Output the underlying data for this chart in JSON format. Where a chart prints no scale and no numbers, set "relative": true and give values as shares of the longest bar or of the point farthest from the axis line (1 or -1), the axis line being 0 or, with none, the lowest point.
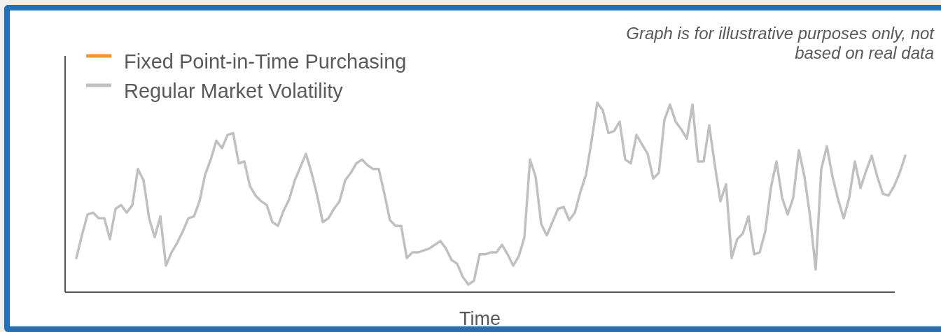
{
  "chart_data": {
    "type": "line",
    "relative": true,
    "xlabel": "Time",
    "legend": "top left",
    "annotations": [
      "Graph is for illustrative purposes only, not based on real data"
    ],
    "categories": [
      null,
      null,
      null,
      null,
      null,
      null,
      null,
      null,
      null,
      null,
      null,
      null,
      null,
      null,
      null,
      null,
      null,
      null,
      null,
      null,
      null,
      null,
      null,
      null,
      null,
      null,
      null,
      null,
      null,
      null,
      null,
      null,
      null,
      null,
      null,
      null,
      null,
      null,
      null,
      null,
      null,
      null,
      null,
      null,
      null,
      null,
      null,
      null,
      null,
      null,
      null,
      null,
      null,
      null,
      null,
      null,
      null,
      null,
      null,
      null,
      null,
      null,
      null,
      null,
      null,
      null,
      null,
      null,
      null,
      null,
      null,
      null,
      null,
      null,
      null,
      null,
      null,
      null,
      null,
      null,
      null,
      null,
      null,
      null,
      null,
      null,
      null,
      null,
      null,
      null,
      null,
      null,
      null,
      null,
      null,
      null,
      null,
      null,
      null,
      null,
      null,
      null,
      null,
      null,
      null,
      null,
      null,
      null,
      null,
      null,
      null,
      null,
      null,
      null,
      null,
      null,
      null,
      null,
      null,
      null,
      null,
      null,
      null,
      null,
      null,
      null,
      null,
      null,
      null,
      null,
      null,
      null,
      null,
      null,
      null,
      null,
      null,
      null,
      null,
      null,
      null,
      null,
      null,
      null,
      null,
      null,
      null,
      null,
      null
    ],
    "series": [
      {
        "name": "Fixed Point-in-Time Purchasing",
        "color": "#f7962b",
        "values": [
          null,
          null,
          null,
          null,
          null,
          null,
          null,
          null,
          null,
          null,
          null,
          null,
          null,
          null,
          null,
          null,
          null,
          null,
          null,
          null,
          null,
          null,
          null,
          null,
          null,
          null,
          null,
          null,
          null,
          null,
          null,
          null,
          null,
          null,
          null,
          null,
          null,
          null,
          null,
          null,
          null,
          null,
          null,
          null,
          null,
          null,
          null,
          null,
          null,
          null,
          null,
          null,
          null,
          null,
          null,
          null,
          null,
          null,
          null,
          null,
          null,
          null,
          null,
          null,
          null,
          null,
          null,
          null,
          null,
          null,
          null,
          null,
          null,
          null,
          null,
          null,
          null,
          null,
          null,
          null,
          null,
          null,
          null,
          null,
          null,
          null,
          null,
          null,
          null,
          null,
          null,
          null,
          null,
          null,
          null,
          null,
          null,
          null,
          null,
          null,
          null,
          null,
          null,
          null,
          null,
          null,
          null,
          null,
          null,
          null,
          null,
          null,
          null,
          null,
          null,
          null,
          null,
          null,
          null,
          null,
          null,
          null,
          null,
          null,
          null,
          null,
          null,
          null,
          null,
          null,
          null,
          null,
          null,
          null,
          null,
          null,
          null,
          null,
          null,
          null,
          null,
          null,
          null,
          null,
          null,
          null,
          null,
          null,
          null
        ]
      },
      {
        "name": "Regular Market Volatility",
        "color": "#c0c0c0",
        "values": [
          0.18,
          0.3,
          0.41,
          0.42,
          0.39,
          0.39,
          0.28,
          0.44,
          0.46,
          0.42,
          0.46,
          0.65,
          0.59,
          0.39,
          0.29,
          0.4,
          0.14,
          0.21,
          0.26,
          0.32,
          0.39,
          0.4,
          0.48,
          0.62,
          0.7,
          0.8,
          0.76,
          0.83,
          0.84,
          0.68,
          0.69,
          0.56,
          0.51,
          0.48,
          0.46,
          0.37,
          0.35,
          0.43,
          0.49,
          0.59,
          0.66,
          0.73,
          0.63,
          0.51,
          0.37,
          0.39,
          0.44,
          0.48,
          0.59,
          0.63,
          0.68,
          0.7,
          0.67,
          0.65,
          0.65,
          0.52,
          0.38,
          0.35,
          0.35,
          0.18,
          0.21,
          0.21,
          0.22,
          0.23,
          0.25,
          0.27,
          0.23,
          0.17,
          0.15,
          0.08,
          0.04,
          0.06,
          0.2,
          0.2,
          0.21,
          0.21,
          0.25,
          0.2,
          0.14,
          0.19,
          0.29,
          0.7,
          0.61,
          0.36,
          0.3,
          0.37,
          0.44,
          0.45,
          0.38,
          0.42,
          0.53,
          0.62,
          0.8,
          1.0,
          0.96,
          0.84,
          0.85,
          0.9,
          0.7,
          0.68,
          0.83,
          0.78,
          0.73,
          0.6,
          0.63,
          0.91,
          0.99,
          0.9,
          0.86,
          0.81,
          0.99,
          0.69,
          0.69,
          0.88,
          0.67,
          0.48,
          0.57,
          0.18,
          0.28,
          0.31,
          0.4,
          0.2,
          0.21,
          0.32,
          0.55,
          0.69,
          0.5,
          0.41,
          0.5,
          0.75,
          0.61,
          0.4,
          0.12,
          0.65,
          0.77,
          0.61,
          0.49,
          0.39,
          0.5,
          0.69,
          0.55,
          0.64,
          0.72,
          0.61,
          0.52,
          0.51,
          0.56,
          0.63,
          0.72
        ]
      }
    ]
  }
}
